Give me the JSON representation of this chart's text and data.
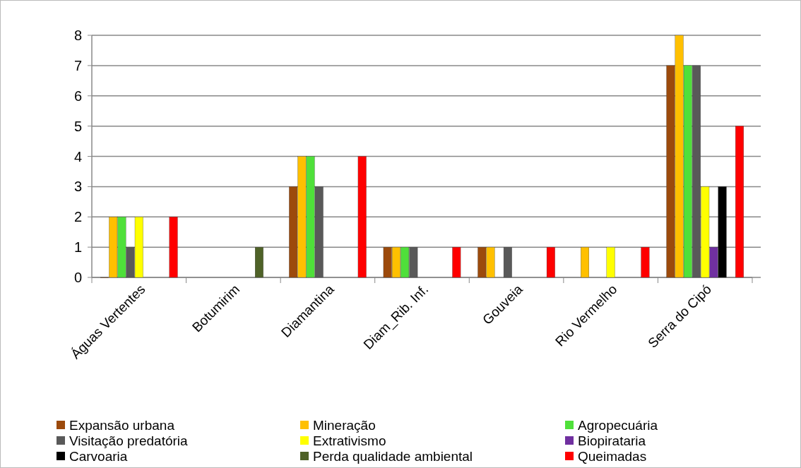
{
  "chart_data": {
    "type": "bar",
    "categories": [
      "Águas Vertentes",
      "Botumirim",
      "Diamantina",
      "Diam_Rib. Inf.",
      "Gouveia",
      "Rio Vermelho",
      "Serra do Cipó"
    ],
    "series": [
      {
        "name": "Expansão urbana",
        "color": "#9c4a0c",
        "values": [
          0,
          null,
          3,
          1,
          1,
          null,
          7
        ]
      },
      {
        "name": "Mineração",
        "color": "#ffc000",
        "values": [
          2,
          null,
          4,
          1,
          1,
          1,
          8
        ]
      },
      {
        "name": "Agropecuária",
        "color": "#4fe03a",
        "values": [
          2,
          null,
          4,
          1,
          null,
          null,
          7
        ]
      },
      {
        "name": "Visitação predatória",
        "color": "#595959",
        "values": [
          1,
          null,
          3,
          1,
          1,
          null,
          7
        ]
      },
      {
        "name": "Extrativismo",
        "color": "#ffff00",
        "values": [
          2,
          null,
          null,
          null,
          null,
          1,
          3
        ]
      },
      {
        "name": "Biopirataria",
        "color": "#7030a0",
        "values": [
          null,
          null,
          null,
          null,
          null,
          null,
          1
        ]
      },
      {
        "name": "Carvoaria",
        "color": "#000000",
        "values": [
          null,
          null,
          null,
          null,
          null,
          null,
          3
        ]
      },
      {
        "name": "Perda qualidade ambiental",
        "color": "#4f6228",
        "values": [
          null,
          1,
          null,
          null,
          null,
          null,
          null
        ]
      },
      {
        "name": "Queimadas",
        "color": "#ff0000",
        "values": [
          2,
          null,
          4,
          1,
          1,
          1,
          5
        ]
      }
    ],
    "ylim": [
      0,
      8
    ],
    "yticks": [
      0,
      1,
      2,
      3,
      4,
      5,
      6,
      7,
      8
    ],
    "grid": "y",
    "legend": "bottom"
  }
}
